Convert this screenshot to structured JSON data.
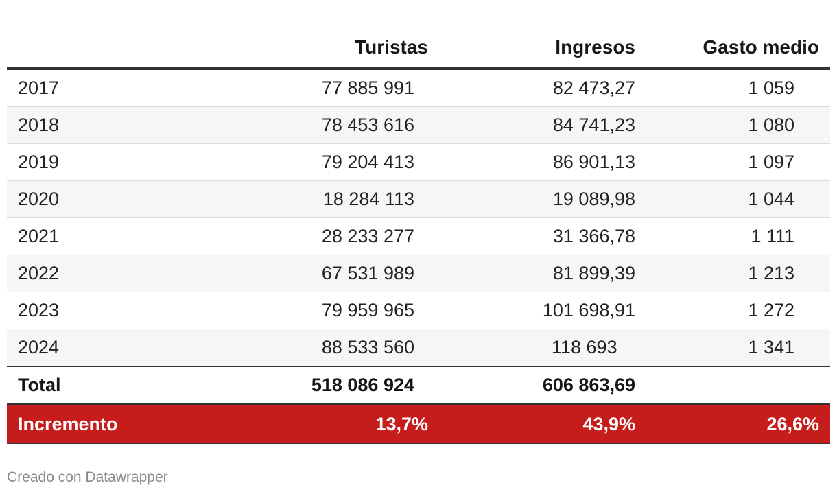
{
  "chart_data": {
    "type": "table",
    "columns": [
      "",
      "Turistas",
      "Ingresos",
      "Gasto medio"
    ],
    "rows": [
      {
        "year": "2017",
        "turistas": "77 885 991",
        "ingresos": "82 473,27",
        "gasto": "1 059"
      },
      {
        "year": "2018",
        "turistas": "78 453 616",
        "ingresos": "84 741,23",
        "gasto": "1 080"
      },
      {
        "year": "2019",
        "turistas": "79 204 413",
        "ingresos": "86 901,13",
        "gasto": "1 097"
      },
      {
        "year": "2020",
        "turistas": "18 284 113",
        "ingresos": "19 089,98",
        "gasto": "1 044"
      },
      {
        "year": "2021",
        "turistas": "28 233 277",
        "ingresos": "31 366,78",
        "gasto": "1 111"
      },
      {
        "year": "2022",
        "turistas": "67 531 989",
        "ingresos": "81 899,39",
        "gasto": "1 213"
      },
      {
        "year": "2023",
        "turistas": "79 959 965",
        "ingresos": "101 698,91",
        "gasto": "1 272"
      },
      {
        "year": "2024",
        "turistas": "88 533 560",
        "ingresos": "118 693",
        "gasto": "1 341"
      }
    ],
    "total": {
      "label": "Total",
      "turistas": "518 086 924",
      "ingresos": "606 863,69",
      "gasto": ""
    },
    "increment": {
      "label": "Incremento",
      "turistas": "13,7%",
      "ingresos": "43,9%",
      "gasto": "26,6%"
    }
  },
  "colors": {
    "increment_bg": "#c71c1c",
    "rule": "#333333",
    "row_alt": "#f6f6f6"
  },
  "footer": {
    "credit": "Creado con Datawrapper"
  }
}
